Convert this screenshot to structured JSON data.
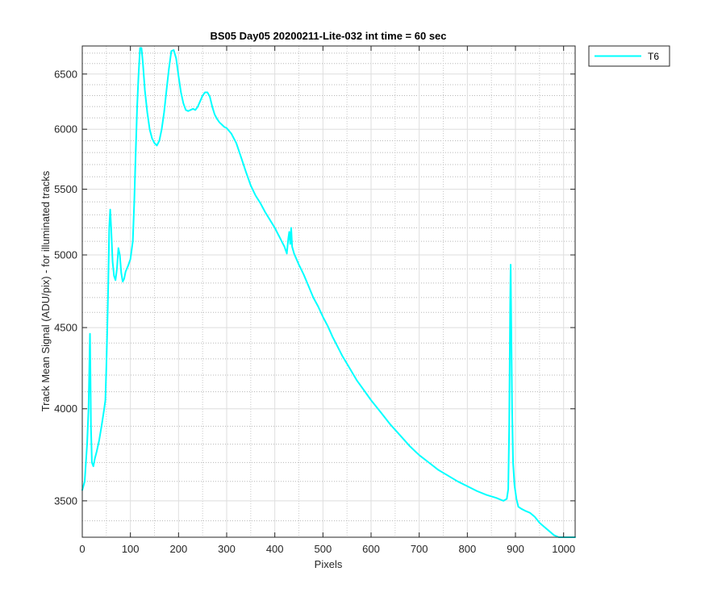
{
  "chart_data": {
    "type": "line",
    "title": "BS05 Day05 20200211-Lite-032 int time = 60 sec",
    "xlabel": "Pixels",
    "ylabel": "Track Mean Signal (ADU/pix) - for illuminated tracks",
    "xlim": [
      0,
      1024
    ],
    "ylim": [
      3320,
      6770
    ],
    "y_scale": "log",
    "xticks": [
      0,
      100,
      200,
      300,
      400,
      500,
      600,
      700,
      800,
      900,
      1000
    ],
    "yticks": [
      3500,
      4000,
      4500,
      5000,
      5500,
      6000,
      6500
    ],
    "grid": true,
    "minor_grid": true,
    "legend": {
      "location": "outside-top-right"
    },
    "series": [
      {
        "name": "T6",
        "color": "#00ffff",
        "points": [
          [
            0,
            3555
          ],
          [
            5,
            3600
          ],
          [
            10,
            3800
          ],
          [
            13,
            4000
          ],
          [
            15,
            4300
          ],
          [
            16,
            4460
          ],
          [
            17,
            4200
          ],
          [
            18,
            3900
          ],
          [
            20,
            3700
          ],
          [
            23,
            3680
          ],
          [
            26,
            3720
          ],
          [
            30,
            3760
          ],
          [
            35,
            3820
          ],
          [
            40,
            3900
          ],
          [
            45,
            3990
          ],
          [
            48,
            4050
          ],
          [
            50,
            4250
          ],
          [
            52,
            4500
          ],
          [
            54,
            4800
          ],
          [
            56,
            5200
          ],
          [
            58,
            5340
          ],
          [
            60,
            5200
          ],
          [
            63,
            4950
          ],
          [
            66,
            4850
          ],
          [
            69,
            4820
          ],
          [
            72,
            4900
          ],
          [
            75,
            5050
          ],
          [
            78,
            5000
          ],
          [
            81,
            4870
          ],
          [
            84,
            4810
          ],
          [
            87,
            4830
          ],
          [
            90,
            4880
          ],
          [
            95,
            4920
          ],
          [
            100,
            4970
          ],
          [
            105,
            5100
          ],
          [
            108,
            5400
          ],
          [
            111,
            5800
          ],
          [
            114,
            6200
          ],
          [
            117,
            6500
          ],
          [
            120,
            6750
          ],
          [
            123,
            6750
          ],
          [
            126,
            6600
          ],
          [
            130,
            6350
          ],
          [
            135,
            6150
          ],
          [
            140,
            6000
          ],
          [
            145,
            5920
          ],
          [
            150,
            5880
          ],
          [
            155,
            5860
          ],
          [
            160,
            5900
          ],
          [
            165,
            6000
          ],
          [
            170,
            6150
          ],
          [
            175,
            6350
          ],
          [
            180,
            6550
          ],
          [
            185,
            6720
          ],
          [
            190,
            6730
          ],
          [
            195,
            6650
          ],
          [
            200,
            6480
          ],
          [
            205,
            6330
          ],
          [
            210,
            6230
          ],
          [
            215,
            6170
          ],
          [
            220,
            6160
          ],
          [
            225,
            6170
          ],
          [
            230,
            6180
          ],
          [
            235,
            6170
          ],
          [
            240,
            6200
          ],
          [
            245,
            6250
          ],
          [
            250,
            6300
          ],
          [
            255,
            6330
          ],
          [
            260,
            6330
          ],
          [
            265,
            6290
          ],
          [
            270,
            6200
          ],
          [
            275,
            6130
          ],
          [
            280,
            6090
          ],
          [
            285,
            6060
          ],
          [
            290,
            6040
          ],
          [
            295,
            6020
          ],
          [
            300,
            6010
          ],
          [
            310,
            5960
          ],
          [
            320,
            5880
          ],
          [
            330,
            5760
          ],
          [
            340,
            5640
          ],
          [
            350,
            5530
          ],
          [
            360,
            5450
          ],
          [
            370,
            5390
          ],
          [
            380,
            5320
          ],
          [
            390,
            5260
          ],
          [
            400,
            5200
          ],
          [
            410,
            5130
          ],
          [
            420,
            5060
          ],
          [
            425,
            5010
          ],
          [
            428,
            5120
          ],
          [
            430,
            5170
          ],
          [
            432,
            5080
          ],
          [
            434,
            5200
          ],
          [
            436,
            5060
          ],
          [
            440,
            5010
          ],
          [
            450,
            4930
          ],
          [
            460,
            4860
          ],
          [
            470,
            4780
          ],
          [
            480,
            4700
          ],
          [
            490,
            4640
          ],
          [
            500,
            4570
          ],
          [
            510,
            4510
          ],
          [
            520,
            4440
          ],
          [
            530,
            4380
          ],
          [
            540,
            4320
          ],
          [
            550,
            4270
          ],
          [
            560,
            4220
          ],
          [
            570,
            4170
          ],
          [
            580,
            4130
          ],
          [
            590,
            4090
          ],
          [
            600,
            4050
          ],
          [
            620,
            3980
          ],
          [
            640,
            3910
          ],
          [
            660,
            3850
          ],
          [
            680,
            3790
          ],
          [
            700,
            3740
          ],
          [
            720,
            3700
          ],
          [
            740,
            3660
          ],
          [
            760,
            3630
          ],
          [
            780,
            3600
          ],
          [
            800,
            3575
          ],
          [
            820,
            3550
          ],
          [
            840,
            3530
          ],
          [
            860,
            3515
          ],
          [
            875,
            3500
          ],
          [
            882,
            3510
          ],
          [
            885,
            3560
          ],
          [
            887,
            3900
          ],
          [
            889,
            4650
          ],
          [
            890,
            4930
          ],
          [
            891,
            4600
          ],
          [
            893,
            4000
          ],
          [
            895,
            3700
          ],
          [
            898,
            3580
          ],
          [
            902,
            3510
          ],
          [
            906,
            3470
          ],
          [
            912,
            3460
          ],
          [
            920,
            3450
          ],
          [
            930,
            3440
          ],
          [
            940,
            3420
          ],
          [
            950,
            3390
          ],
          [
            960,
            3370
          ],
          [
            970,
            3350
          ],
          [
            980,
            3330
          ],
          [
            990,
            3318
          ],
          [
            1000,
            3315
          ],
          [
            1010,
            3316
          ],
          [
            1024,
            3317
          ]
        ]
      }
    ]
  }
}
